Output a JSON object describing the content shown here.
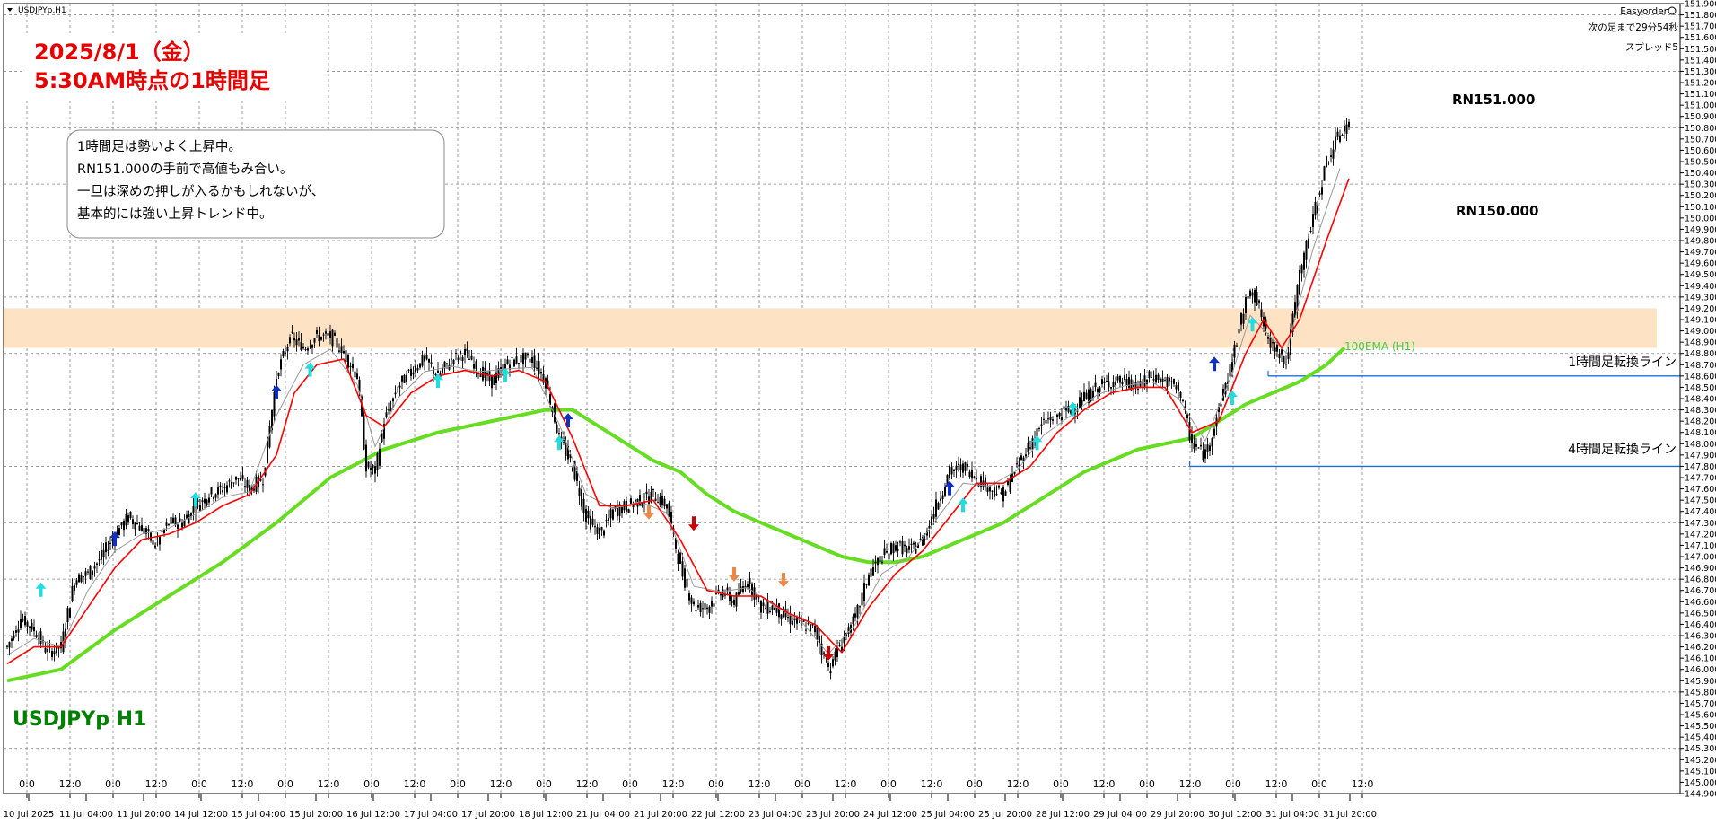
{
  "window": {
    "symbol_label": "USDJPYp,H1",
    "ea_name": "Easyorder",
    "next_bar": "次の足まで29分54秒",
    "spread": "スプレッド5"
  },
  "annotations": {
    "title_line1": "2025/8/1（金）",
    "title_line2": "5:30AM時点の1時間足",
    "note_lines": [
      "1時間足は勢いよく上昇中。",
      "RN151.000の手前で高値もみ合い。",
      "一旦は深めの押しが入るかもしれないが、",
      "基本的には強い上昇トレンド中。"
    ],
    "rn_high": "RN151.000",
    "rn_low": "RN150.000",
    "line_1h": "1時間足転換ライン",
    "line_4h": "4時間足転換ライン",
    "ema_label": "100EMA (H1)",
    "bottom_label": "USDJPYp H1"
  },
  "colors": {
    "candle": "#000000",
    "ma_fast": "#ff0000",
    "ma_mid": "#999999",
    "ema100": "#66dd22",
    "zone": "#fde2c4",
    "hline": "#1a6fd6",
    "grid": "#888888",
    "buy_arrow": "#1030c0",
    "buy_arrow_light": "#22dddd",
    "sell_arrow": "#cc0000",
    "sell_arrow_light": "#ee8844",
    "title": "#e60000",
    "bottom_label": "#008000"
  },
  "chart_data": {
    "type": "candlestick",
    "title": "USDJPYp,H1",
    "ylim": [
      144.9,
      151.9
    ],
    "y_ticks": [
      "151.900",
      "151.800",
      "151.700",
      "151.600",
      "151.500",
      "151.400",
      "151.300",
      "151.200",
      "151.100",
      "151.000",
      "150.900",
      "150.800",
      "150.700",
      "150.600",
      "150.500",
      "150.400",
      "150.300",
      "150.200",
      "150.100",
      "150.000",
      "149.900",
      "149.800",
      "149.700",
      "149.600",
      "149.500",
      "149.400",
      "149.300",
      "149.200",
      "149.100",
      "149.000",
      "148.900",
      "148.800",
      "148.700",
      "148.600",
      "148.500",
      "148.400",
      "148.300",
      "148.200",
      "148.100",
      "148.000",
      "147.900",
      "147.800",
      "147.700",
      "147.600",
      "147.500",
      "147.400",
      "147.300",
      "147.200",
      "147.100",
      "147.000",
      "146.900",
      "146.800",
      "146.700",
      "146.600",
      "146.500",
      "146.400",
      "146.300",
      "146.200",
      "146.100",
      "146.000",
      "145.900",
      "145.800",
      "145.700",
      "145.600",
      "145.500",
      "145.400",
      "145.300",
      "145.200",
      "145.100",
      "145.000",
      "144.900"
    ],
    "x_time_labels": [
      "0:0",
      "12:0",
      "0:0",
      "12:0",
      "0:0",
      "12:0",
      "0:0",
      "12:0",
      "0:0",
      "12:0",
      "0:0",
      "12:0",
      "0:0",
      "12:0",
      "0:0",
      "12:0",
      "0:0",
      "12:0",
      "0:0",
      "12:0",
      "0:0",
      "12:0",
      "0:0",
      "12:0",
      "0:0",
      "12:0",
      "0:0",
      "12:0",
      "0:0",
      "12:0",
      "0:0",
      "12:0"
    ],
    "x_date_labels": [
      "10 Jul 2025",
      "11 Jul 04:00",
      "11 Jul 20:00",
      "14 Jul 12:00",
      "15 Jul 04:00",
      "15 Jul 20:00",
      "16 Jul 12:00",
      "17 Jul 04:00",
      "17 Jul 20:00",
      "18 Jul 12:00",
      "21 Jul 04:00",
      "21 Jul 20:00",
      "22 Jul 12:00",
      "23 Jul 04:00",
      "23 Jul 20:00",
      "24 Jul 12:00",
      "25 Jul 04:00",
      "25 Jul 20:00",
      "28 Jul 12:00",
      "29 Jul 04:00",
      "29 Jul 20:00",
      "30 Jul 12:00",
      "31 Jul 04:00",
      "31 Jul 20:00"
    ],
    "price_path": [
      [
        0,
        146.2
      ],
      [
        6,
        146.45
      ],
      [
        12,
        146.35
      ],
      [
        18,
        146.15
      ],
      [
        24,
        146.2
      ],
      [
        30,
        146.8
      ],
      [
        36,
        146.85
      ],
      [
        42,
        147.0
      ],
      [
        48,
        147.2
      ],
      [
        54,
        147.35
      ],
      [
        60,
        147.25
      ],
      [
        66,
        147.1
      ],
      [
        72,
        147.3
      ],
      [
        78,
        147.3
      ],
      [
        84,
        147.45
      ],
      [
        90,
        147.55
      ],
      [
        96,
        147.6
      ],
      [
        102,
        147.7
      ],
      [
        108,
        147.6
      ],
      [
        114,
        147.7
      ],
      [
        120,
        148.6
      ],
      [
        126,
        148.95
      ],
      [
        132,
        148.85
      ],
      [
        138,
        148.95
      ],
      [
        144,
        148.95
      ],
      [
        150,
        148.8
      ],
      [
        156,
        148.6
      ],
      [
        160,
        147.8
      ],
      [
        164,
        147.75
      ],
      [
        168,
        148.2
      ],
      [
        174,
        148.5
      ],
      [
        180,
        148.65
      ],
      [
        186,
        148.75
      ],
      [
        192,
        148.6
      ],
      [
        198,
        148.75
      ],
      [
        204,
        148.8
      ],
      [
        210,
        148.65
      ],
      [
        216,
        148.55
      ],
      [
        222,
        148.7
      ],
      [
        228,
        148.75
      ],
      [
        234,
        148.75
      ],
      [
        240,
        148.55
      ],
      [
        246,
        148.05
      ],
      [
        252,
        147.8
      ],
      [
        258,
        147.35
      ],
      [
        264,
        147.2
      ],
      [
        270,
        147.4
      ],
      [
        276,
        147.45
      ],
      [
        282,
        147.5
      ],
      [
        288,
        147.55
      ],
      [
        294,
        147.45
      ],
      [
        300,
        146.9
      ],
      [
        306,
        146.55
      ],
      [
        312,
        146.55
      ],
      [
        318,
        146.7
      ],
      [
        324,
        146.6
      ],
      [
        330,
        146.8
      ],
      [
        336,
        146.55
      ],
      [
        342,
        146.55
      ],
      [
        348,
        146.45
      ],
      [
        354,
        146.4
      ],
      [
        360,
        146.35
      ],
      [
        366,
        146.0
      ],
      [
        372,
        146.25
      ],
      [
        378,
        146.45
      ],
      [
        384,
        146.85
      ],
      [
        390,
        147.0
      ],
      [
        396,
        147.1
      ],
      [
        402,
        147.05
      ],
      [
        408,
        147.15
      ],
      [
        414,
        147.45
      ],
      [
        420,
        147.75
      ],
      [
        426,
        147.8
      ],
      [
        432,
        147.7
      ],
      [
        438,
        147.6
      ],
      [
        444,
        147.55
      ],
      [
        450,
        147.8
      ],
      [
        456,
        148.0
      ],
      [
        462,
        148.2
      ],
      [
        468,
        148.25
      ],
      [
        474,
        148.3
      ],
      [
        480,
        148.4
      ],
      [
        486,
        148.5
      ],
      [
        492,
        148.55
      ],
      [
        498,
        148.55
      ],
      [
        504,
        148.5
      ],
      [
        510,
        148.6
      ],
      [
        516,
        148.55
      ],
      [
        522,
        148.5
      ],
      [
        528,
        148.0
      ],
      [
        534,
        147.9
      ],
      [
        540,
        148.3
      ],
      [
        546,
        148.75
      ],
      [
        550,
        149.1
      ],
      [
        554,
        149.4
      ],
      [
        558,
        149.2
      ],
      [
        562,
        148.9
      ],
      [
        566,
        148.85
      ],
      [
        570,
        148.7
      ],
      [
        576,
        149.5
      ],
      [
        582,
        150.0
      ],
      [
        588,
        150.5
      ],
      [
        594,
        150.75
      ],
      [
        598,
        150.85
      ]
    ],
    "ma_fast": [
      [
        0,
        146.05
      ],
      [
        12,
        146.2
      ],
      [
        24,
        146.2
      ],
      [
        36,
        146.55
      ],
      [
        48,
        146.9
      ],
      [
        60,
        147.15
      ],
      [
        72,
        147.2
      ],
      [
        84,
        147.3
      ],
      [
        96,
        147.45
      ],
      [
        108,
        147.55
      ],
      [
        120,
        147.9
      ],
      [
        128,
        148.45
      ],
      [
        138,
        148.7
      ],
      [
        150,
        148.75
      ],
      [
        160,
        148.25
      ],
      [
        168,
        148.15
      ],
      [
        180,
        148.45
      ],
      [
        192,
        148.6
      ],
      [
        204,
        148.65
      ],
      [
        216,
        148.6
      ],
      [
        228,
        148.65
      ],
      [
        240,
        148.55
      ],
      [
        252,
        148.05
      ],
      [
        264,
        147.45
      ],
      [
        276,
        147.45
      ],
      [
        288,
        147.5
      ],
      [
        300,
        147.15
      ],
      [
        312,
        146.7
      ],
      [
        324,
        146.65
      ],
      [
        336,
        146.65
      ],
      [
        348,
        146.5
      ],
      [
        360,
        146.4
      ],
      [
        372,
        146.15
      ],
      [
        384,
        146.55
      ],
      [
        396,
        146.85
      ],
      [
        408,
        147.05
      ],
      [
        420,
        147.35
      ],
      [
        432,
        147.65
      ],
      [
        444,
        147.65
      ],
      [
        456,
        147.8
      ],
      [
        468,
        148.1
      ],
      [
        480,
        148.3
      ],
      [
        492,
        148.45
      ],
      [
        504,
        148.5
      ],
      [
        516,
        148.5
      ],
      [
        528,
        148.1
      ],
      [
        540,
        148.2
      ],
      [
        552,
        148.8
      ],
      [
        560,
        149.1
      ],
      [
        568,
        148.85
      ],
      [
        576,
        149.1
      ],
      [
        588,
        149.8
      ],
      [
        598,
        150.35
      ]
    ],
    "ema100": [
      [
        0,
        145.9
      ],
      [
        24,
        146.0
      ],
      [
        48,
        146.35
      ],
      [
        72,
        146.65
      ],
      [
        96,
        146.95
      ],
      [
        120,
        147.3
      ],
      [
        144,
        147.7
      ],
      [
        168,
        147.95
      ],
      [
        192,
        148.1
      ],
      [
        216,
        148.2
      ],
      [
        240,
        148.3
      ],
      [
        252,
        148.3
      ],
      [
        264,
        148.15
      ],
      [
        276,
        148.0
      ],
      [
        288,
        147.85
      ],
      [
        300,
        147.75
      ],
      [
        312,
        147.55
      ],
      [
        324,
        147.4
      ],
      [
        336,
        147.3
      ],
      [
        348,
        147.2
      ],
      [
        360,
        147.1
      ],
      [
        372,
        147.0
      ],
      [
        384,
        146.95
      ],
      [
        396,
        146.95
      ],
      [
        408,
        147.0
      ],
      [
        420,
        147.1
      ],
      [
        432,
        147.2
      ],
      [
        444,
        147.3
      ],
      [
        456,
        147.45
      ],
      [
        468,
        147.6
      ],
      [
        480,
        147.75
      ],
      [
        492,
        147.85
      ],
      [
        504,
        147.95
      ],
      [
        516,
        148.0
      ],
      [
        528,
        148.05
      ],
      [
        540,
        148.2
      ],
      [
        552,
        148.35
      ],
      [
        564,
        148.45
      ],
      [
        576,
        148.55
      ],
      [
        588,
        148.7
      ],
      [
        596,
        148.85
      ]
    ],
    "signals": [
      {
        "bar": 15,
        "type": "buy_light",
        "price": 146.7
      },
      {
        "bar": 48,
        "type": "buy",
        "price": 147.15
      },
      {
        "bar": 84,
        "type": "buy_light",
        "price": 147.5
      },
      {
        "bar": 120,
        "type": "buy",
        "price": 148.45
      },
      {
        "bar": 135,
        "type": "buy_light",
        "price": 148.65
      },
      {
        "bar": 192,
        "type": "buy_light",
        "price": 148.55
      },
      {
        "bar": 222,
        "type": "buy_light",
        "price": 148.6
      },
      {
        "bar": 246,
        "type": "buy_light",
        "price": 148.0
      },
      {
        "bar": 250,
        "type": "buy",
        "price": 148.2
      },
      {
        "bar": 286,
        "type": "sell_light",
        "price": 147.4
      },
      {
        "bar": 306,
        "type": "sell",
        "price": 147.3
      },
      {
        "bar": 324,
        "type": "sell_light",
        "price": 146.85
      },
      {
        "bar": 346,
        "type": "sell_light",
        "price": 146.8
      },
      {
        "bar": 366,
        "type": "sell",
        "price": 146.15
      },
      {
        "bar": 420,
        "type": "buy",
        "price": 147.6
      },
      {
        "bar": 426,
        "type": "buy_light",
        "price": 147.45
      },
      {
        "bar": 459,
        "type": "buy_light",
        "price": 148.0
      },
      {
        "bar": 475,
        "type": "buy_light",
        "price": 148.3
      },
      {
        "bar": 538,
        "type": "buy",
        "price": 148.7
      },
      {
        "bar": 546,
        "type": "buy_light",
        "price": 148.4
      },
      {
        "bar": 555,
        "type": "buy_light",
        "price": 149.05
      }
    ],
    "zone": [
      148.85,
      149.2
    ],
    "hlines": [
      {
        "name": "1時間足転換ライン",
        "price": 148.6,
        "from_bar": 562
      },
      {
        "name": "4時間足転換ライン",
        "price": 147.8,
        "from_bar": 527
      }
    ],
    "rn_levels": [
      151.0,
      150.0
    ],
    "grid": true
  }
}
